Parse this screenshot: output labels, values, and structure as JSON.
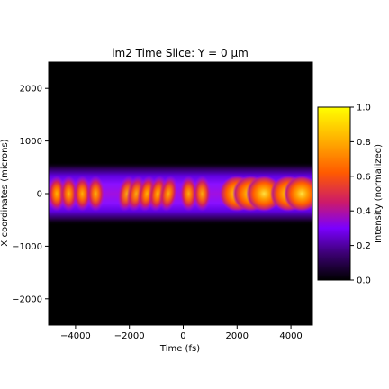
{
  "chart_data": {
    "type": "heatmap",
    "title": "im2 Time Slice: Y = 0 µm",
    "xlabel": "Time (fs)",
    "ylabel": "X coordinates (microns)",
    "xlim": [
      -5000,
      4800
    ],
    "ylim": [
      -2500,
      2500
    ],
    "x_ticks": [
      -4000,
      -2000,
      0,
      2000,
      4000
    ],
    "x_tick_labels": [
      "−4000",
      "−2000",
      "0",
      "2000",
      "4000"
    ],
    "y_ticks": [
      2000,
      1000,
      0,
      -1000,
      -2000
    ],
    "y_tick_labels": [
      "2000",
      "1000",
      "0",
      "−1000",
      "−2000"
    ],
    "colorbar": {
      "label": "Intensity (normalized)",
      "min": 0.0,
      "max": 1.0,
      "ticks": [
        0.0,
        0.2,
        0.4,
        0.6,
        0.8,
        1.0
      ],
      "tick_labels": [
        "0.0",
        "0.2",
        "0.4",
        "0.6",
        "0.8",
        "1.0"
      ],
      "colormap": "gnuplot",
      "colormap_stops": [
        "#000000",
        "#3a0070",
        "#7a00ff",
        "#cc1a6a",
        "#ff5a00",
        "#ffb400",
        "#ffff00"
      ]
    },
    "beam_center_x_um": 0,
    "beam_halfwidth_um": 600,
    "features": [
      {
        "t": -4700,
        "x_um": 0,
        "intensity": 0.66,
        "tilt": 0
      },
      {
        "t": -4250,
        "x_um": 0,
        "intensity": 0.62,
        "tilt": 0
      },
      {
        "t": -3750,
        "x_um": 0,
        "intensity": 0.63,
        "tilt": 0
      },
      {
        "t": -3250,
        "x_um": 0,
        "intensity": 0.6,
        "tilt": 0
      },
      {
        "t": -2100,
        "x_um": 0,
        "intensity": 0.55,
        "tilt": 0.18
      },
      {
        "t": -1750,
        "x_um": 0,
        "intensity": 0.58,
        "tilt": 0.18
      },
      {
        "t": -1350,
        "x_um": 0,
        "intensity": 0.64,
        "tilt": 0.18
      },
      {
        "t": -950,
        "x_um": 0,
        "intensity": 0.63,
        "tilt": 0.18
      },
      {
        "t": -550,
        "x_um": 0,
        "intensity": 0.6,
        "tilt": 0.18
      },
      {
        "t": 200,
        "x_um": 0,
        "intensity": 0.6,
        "tilt": 0
      },
      {
        "t": 700,
        "x_um": 0,
        "intensity": 0.58,
        "tilt": 0
      },
      {
        "t": 2000,
        "x_um": 0,
        "intensity": 0.82,
        "tilt": 0
      },
      {
        "t": 2500,
        "x_um": 0,
        "intensity": 0.9,
        "tilt": 0
      },
      {
        "t": 3000,
        "x_um": 0,
        "intensity": 0.83,
        "tilt": 0
      },
      {
        "t": 3900,
        "x_um": 0,
        "intensity": 0.78,
        "tilt": 0
      },
      {
        "t": 4400,
        "x_um": 0,
        "intensity": 0.82,
        "tilt": 0
      }
    ]
  }
}
